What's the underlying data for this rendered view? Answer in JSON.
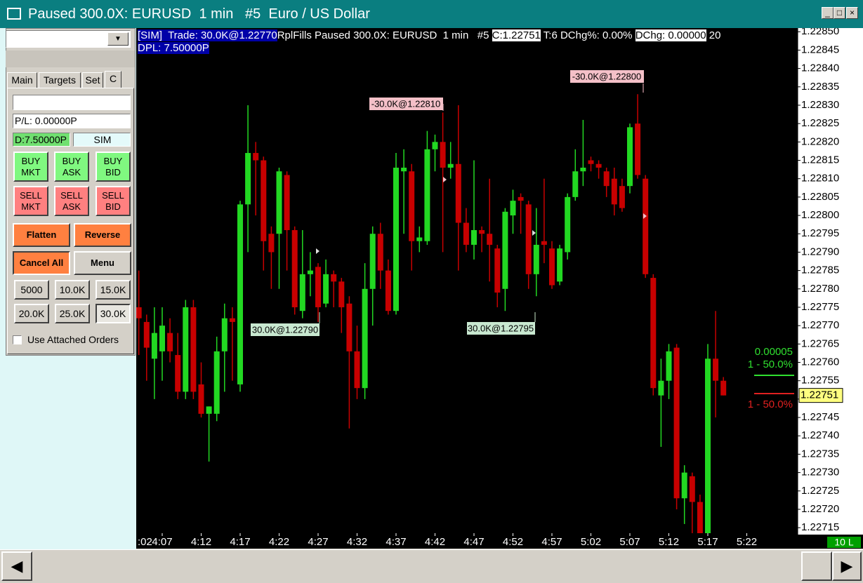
{
  "window": {
    "title": "Paused 300.0X: EURUSD  1 min   #5  Euro / US Dollar"
  },
  "panel": {
    "tabs": [
      "Main",
      "Targets",
      "Set",
      "C"
    ],
    "pl": "P/L: 0.00000P",
    "dpl": "D:7.50000P",
    "mode": "SIM",
    "buy_buttons": [
      [
        "BUY",
        "MKT"
      ],
      [
        "BUY",
        "ASK"
      ],
      [
        "BUY",
        "BID"
      ]
    ],
    "sell_buttons": [
      [
        "SELL",
        "MKT"
      ],
      [
        "SELL",
        "ASK"
      ],
      [
        "SELL",
        "BID"
      ]
    ],
    "actions": [
      "Flatten",
      "Reverse",
      "Cancel All",
      "Menu"
    ],
    "quantities": [
      "5000",
      "10.0K",
      "15.0K",
      "20.0K",
      "25.0K",
      "30.0K"
    ],
    "checkbox": "Use Attached Orders"
  },
  "chart_data": {
    "type": "candlestick",
    "header": [
      "[SIM]  Trade: 30.0K@1.22770",
      "RplFills Paused 300.0X: EURUSD  1 min   #5 ",
      "C:1.22751",
      " T:6 DChg%: 0.00% ",
      "DChg: 0.00000",
      " 20",
      "DPL: 7.50000P"
    ],
    "x": [
      "4:04",
      "4:05",
      "4:06",
      "4:07",
      "4:08",
      "4:09",
      "4:10",
      "4:11",
      "4:12",
      "4:13",
      "4:14",
      "4:15",
      "4:16",
      "4:17",
      "4:18",
      "4:19",
      "4:20",
      "4:21",
      "4:22",
      "4:23",
      "4:24",
      "4:25",
      "4:26",
      "4:27",
      "4:28",
      "4:29",
      "4:30",
      "4:31",
      "4:32",
      "4:33",
      "4:34",
      "4:35",
      "4:36",
      "4:37",
      "4:38",
      "4:39",
      "4:40",
      "4:41",
      "4:42",
      "4:43",
      "4:44",
      "4:45",
      "4:46",
      "4:47",
      "4:48",
      "4:49",
      "4:50",
      "4:51",
      "4:52",
      "4:53",
      "4:54",
      "4:55",
      "4:56",
      "4:57",
      "4:58",
      "4:59",
      "5:00",
      "5:01",
      "5:02",
      "5:03",
      "5:04",
      "5:05",
      "5:06",
      "5:07",
      "5:08",
      "5:09",
      "5:10",
      "5:11",
      "5:12",
      "5:13",
      "5:14",
      "5:15",
      "5:16",
      "5:17",
      "5:18",
      "5:19"
    ],
    "open": [
      1.22775,
      1.22771,
      1.22761,
      1.22763,
      1.22768,
      1.22762,
      1.22752,
      1.22775,
      1.22754,
      1.22746,
      1.22746,
      1.22763,
      1.22772,
      1.22754,
      1.22803,
      1.22817,
      1.22815,
      1.22795,
      1.22795,
      1.22811,
      1.22796,
      1.22774,
      1.22784,
      1.22786,
      1.22776,
      1.22784,
      1.22782,
      1.22776,
      1.22763,
      1.22753,
      1.2278,
      1.22795,
      1.22785,
      1.22774,
      1.22812,
      1.22812,
      1.22793,
      1.22793,
      1.22818,
      1.2282,
      1.22813,
      1.22814,
      1.22798,
      1.22792,
      1.22796,
      1.22795,
      1.22791,
      1.2278,
      1.228,
      1.22805,
      1.22803,
      1.22784,
      1.22793,
      1.22791,
      1.22782,
      1.2279,
      1.22805,
      1.22812,
      1.22815,
      1.22814,
      1.22812,
      1.2281,
      1.22808,
      1.22808,
      1.22825,
      1.2281,
      1.22783,
      1.22751,
      1.22755,
      1.22764,
      1.22723,
      1.22729,
      1.22722,
      1.22712,
      1.22761,
      1.22755
    ],
    "high": [
      1.22785,
      1.22773,
      1.22775,
      1.22775,
      1.22772,
      1.22768,
      1.22777,
      1.22777,
      1.2276,
      1.22748,
      1.22767,
      1.22776,
      1.22775,
      1.22804,
      1.2283,
      1.2282,
      1.22816,
      1.22797,
      1.22813,
      1.22812,
      1.22797,
      1.22796,
      1.2279,
      1.22787,
      1.22788,
      1.22785,
      1.22783,
      1.22778,
      1.2277,
      1.22787,
      1.22797,
      1.22798,
      1.22788,
      1.22817,
      1.22818,
      1.22814,
      1.22797,
      1.22823,
      1.22822,
      1.22828,
      1.2282,
      1.2283,
      1.22802,
      1.22815,
      1.22797,
      1.2281,
      1.22792,
      1.22802,
      1.22807,
      1.22806,
      1.22804,
      1.22802,
      1.2281,
      1.22793,
      1.22792,
      1.22806,
      1.22818,
      1.22826,
      1.22816,
      1.22815,
      1.22813,
      1.22813,
      1.2281,
      1.22825,
      1.22833,
      1.22811,
      1.22784,
      1.22761,
      1.22765,
      1.22765,
      1.22732,
      1.2273,
      1.22724,
      1.22765,
      1.22774,
      1.22756
    ],
    "low": [
      1.22762,
      1.22755,
      1.2275,
      1.22755,
      1.2276,
      1.2275,
      1.2275,
      1.2275,
      1.22745,
      1.22733,
      1.22744,
      1.22752,
      1.22755,
      1.22752,
      1.2279,
      1.228,
      1.22785,
      1.2278,
      1.2278,
      1.22785,
      1.22773,
      1.22772,
      1.22778,
      1.22771,
      1.22775,
      1.22775,
      1.22768,
      1.22742,
      1.2275,
      1.2275,
      1.2277,
      1.2278,
      1.22773,
      1.22773,
      1.22795,
      1.22785,
      1.2279,
      1.22792,
      1.22812,
      1.2279,
      1.2281,
      1.22785,
      1.2279,
      1.22788,
      1.2279,
      1.22782,
      1.22775,
      1.22774,
      1.22795,
      1.22795,
      1.2278,
      1.22778,
      1.22787,
      1.2278,
      1.22781,
      1.22788,
      1.22804,
      1.22808,
      1.22812,
      1.2281,
      1.22805,
      1.228,
      1.22801,
      1.22806,
      1.2281,
      1.22783,
      1.22751,
      1.22737,
      1.2275,
      1.2272,
      1.22716,
      1.22712,
      1.22705,
      1.22705,
      1.22745,
      1.22751
    ],
    "close": [
      1.22772,
      1.22764,
      1.22768,
      1.2277,
      1.22763,
      1.22752,
      1.22775,
      1.22752,
      1.22746,
      1.22748,
      1.22763,
      1.22772,
      1.22771,
      1.22803,
      1.22817,
      1.22815,
      1.22793,
      1.2279,
      1.22812,
      1.22796,
      1.22775,
      1.22784,
      1.22785,
      1.22775,
      1.22784,
      1.22782,
      1.22775,
      1.22763,
      1.22753,
      1.2278,
      1.22795,
      1.22785,
      1.22774,
      1.22813,
      1.22813,
      1.22793,
      1.22794,
      1.22818,
      1.2282,
      1.22813,
      1.22814,
      1.22798,
      1.22792,
      1.22796,
      1.22795,
      1.22792,
      1.22779,
      1.22801,
      1.22804,
      1.22804,
      1.22784,
      1.22792,
      1.22792,
      1.22781,
      1.22791,
      1.22805,
      1.22812,
      1.22813,
      1.22814,
      1.22813,
      1.22808,
      1.22803,
      1.22802,
      1.22824,
      1.22811,
      1.22784,
      1.22753,
      1.22755,
      1.22763,
      1.22723,
      1.2273,
      1.22722,
      1.22708,
      1.22761,
      1.22755,
      1.22751
    ],
    "up_color": "#22d822",
    "down_color": "#c80000",
    "ylim": [
      1.227135,
      1.22851
    ],
    "yticks": [
      {
        "value": 1.2285,
        "label": "1.22850"
      },
      1.22845,
      {
        "value": 1.2284,
        "label": "1.22840"
      },
      1.22835,
      {
        "value": 1.2283,
        "label": "1.22830"
      },
      1.22825,
      {
        "value": 1.2282,
        "label": "1.22820"
      },
      1.22815,
      {
        "value": 1.2281,
        "label": "1.22810"
      },
      1.22805,
      {
        "value": 1.228,
        "label": "1.22800"
      },
      1.22795,
      {
        "value": 1.2279,
        "label": "1.22790"
      },
      1.22785,
      {
        "value": 1.2278,
        "label": "1.22780"
      },
      1.22775,
      {
        "value": 1.2277,
        "label": "1.22770"
      },
      1.22765,
      {
        "value": 1.2276,
        "label": "1.22760"
      },
      1.22755,
      {
        "value": 1.2275,
        "label": "1.22750"
      },
      1.22745,
      {
        "value": 1.2274,
        "label": "1.22740"
      },
      1.22735,
      {
        "value": 1.2273,
        "label": "1.22730"
      },
      1.22725,
      {
        "value": 1.2272,
        "label": "1.22720"
      },
      1.22715
    ],
    "xticks": [
      {
        "value": "4:02",
        "label": ":02"
      },
      "4:07",
      "4:12",
      "4:17",
      "4:22",
      "4:27",
      "4:32",
      "4:37",
      "4:42",
      "4:47",
      "4:52",
      "4:57",
      "5:02",
      "5:07",
      "5:12",
      "5:17",
      "5:22"
    ],
    "last_price": 1.22751,
    "annotations": [
      "-30.0K@1.22810",
      "-30.0K@1.22800",
      "30.0K@1.22790",
      "30.0K@1.22795"
    ],
    "target_labels": [
      "0.00005",
      "1 - 50.0%",
      "1 - 50.0%"
    ],
    "lots": "10 L"
  }
}
